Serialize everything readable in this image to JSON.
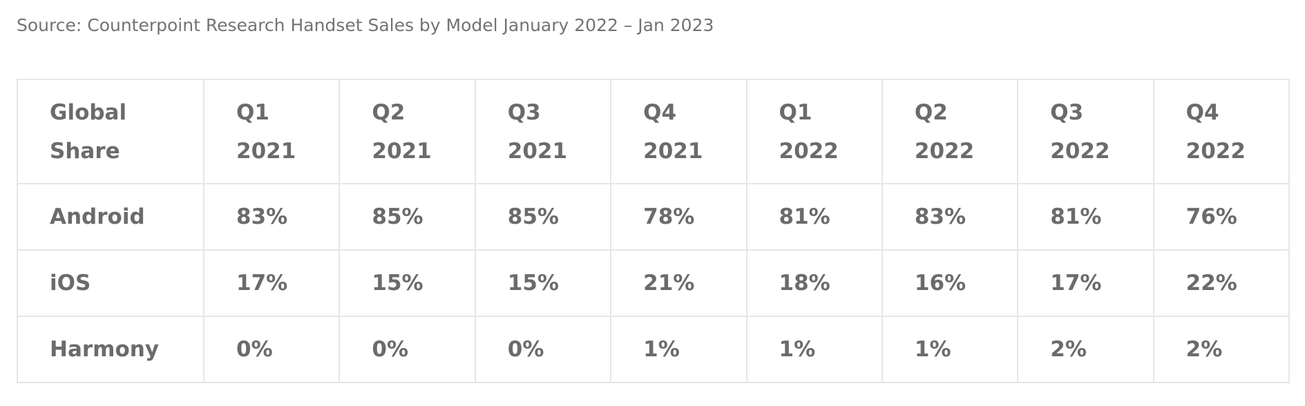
{
  "source": "Source: Counterpoint Research Handset Sales by Model January 2022 – Jan 2023",
  "table": {
    "header": [
      "Global Share",
      "Q1 2021",
      "Q2 2021",
      "Q3 2021",
      "Q4 2021",
      "Q1 2022",
      "Q2 2022",
      "Q3 2022",
      "Q4 2022"
    ],
    "rows": [
      [
        "Android",
        "83%",
        "85%",
        "85%",
        "78%",
        "81%",
        "83%",
        "81%",
        "76%"
      ],
      [
        "iOS",
        "17%",
        "15%",
        "15%",
        "21%",
        "18%",
        "16%",
        "17%",
        "22%"
      ],
      [
        "Harmony",
        "0%",
        "0%",
        "0%",
        "1%",
        "1%",
        "1%",
        "2%",
        "2%"
      ]
    ]
  }
}
